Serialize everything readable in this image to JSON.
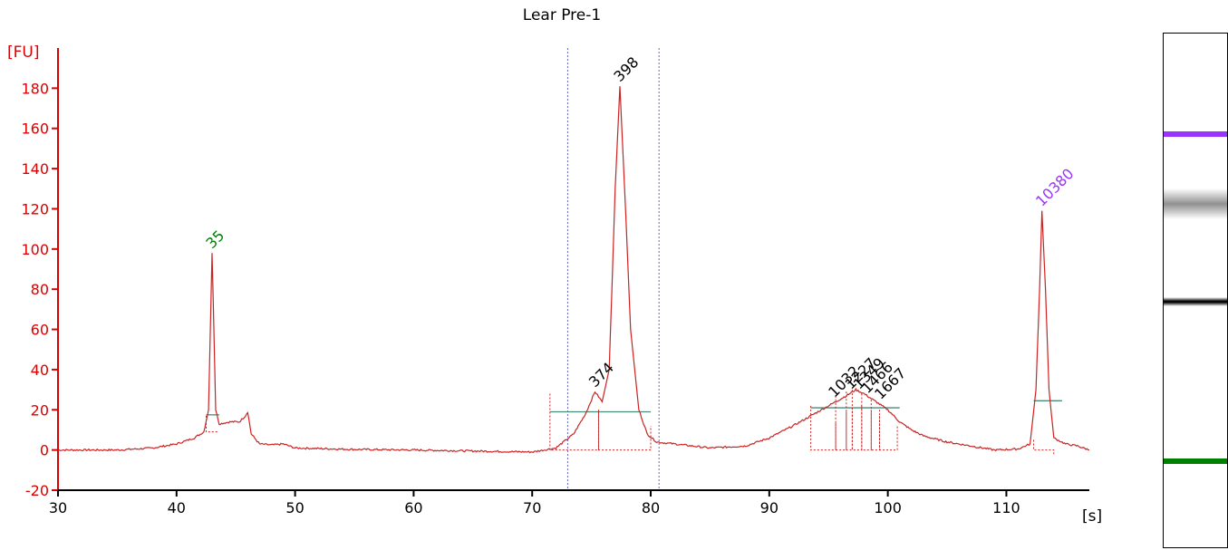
{
  "chart_data": {
    "type": "line",
    "title": "Lear Pre-1",
    "ylabel": "[FU]",
    "xlabel": "[s]",
    "xlim": [
      30,
      117
    ],
    "ylim": [
      -20,
      200
    ],
    "x_ticks": [
      "30",
      "40",
      "50",
      "60",
      "70",
      "80",
      "90",
      "100",
      "110"
    ],
    "y_ticks": [
      "-20",
      "0",
      "20",
      "40",
      "60",
      "80",
      "100",
      "120",
      "140",
      "160",
      "180"
    ],
    "grid": false,
    "colors": {
      "trace": "#cc2222",
      "axis_y": "#dd0000",
      "axis_x": "#000000",
      "baseline": "#4a8a7a",
      "marker_lower": "#008000",
      "marker_upper": "#9933ff",
      "region": "#6666cc"
    },
    "region_bounds": [
      73,
      80.7
    ],
    "peaks": [
      {
        "label": "35",
        "x": 43.0,
        "y": 98,
        "color": "#008000"
      },
      {
        "label": "374",
        "x": 75.3,
        "y": 29,
        "color": "#000000"
      },
      {
        "label": "398",
        "x": 77.4,
        "y": 181,
        "color": "#000000"
      },
      {
        "label": "1032",
        "x": 95.5,
        "y": 24,
        "color": "#000000"
      },
      {
        "label": "1227",
        "x": 96.9,
        "y": 28,
        "color": "#000000"
      },
      {
        "label": "1349",
        "x": 97.6,
        "y": 28,
        "color": "#000000"
      },
      {
        "label": "1466",
        "x": 98.3,
        "y": 26,
        "color": "#000000"
      },
      {
        "label": "1667",
        "x": 99.4,
        "y": 23,
        "color": "#000000"
      },
      {
        "label": "10380",
        "x": 113.0,
        "y": 119,
        "color": "#9933ff"
      }
    ],
    "trace_points": [
      [
        30,
        0
      ],
      [
        35,
        0
      ],
      [
        38,
        1
      ],
      [
        40,
        3
      ],
      [
        41.5,
        6
      ],
      [
        42.3,
        9
      ],
      [
        42.7,
        20
      ],
      [
        43.0,
        98
      ],
      [
        43.3,
        20
      ],
      [
        43.6,
        13
      ],
      [
        44.5,
        14
      ],
      [
        45.3,
        14
      ],
      [
        45.8,
        17
      ],
      [
        46.0,
        19
      ],
      [
        46.3,
        8
      ],
      [
        47,
        3
      ],
      [
        48,
        2.5
      ],
      [
        49,
        3
      ],
      [
        50,
        1
      ],
      [
        55,
        0.3
      ],
      [
        60,
        0
      ],
      [
        65,
        -0.5
      ],
      [
        70,
        -1
      ],
      [
        72,
        1
      ],
      [
        73.5,
        8
      ],
      [
        74.5,
        18
      ],
      [
        75.3,
        29
      ],
      [
        75.9,
        24
      ],
      [
        76.5,
        40
      ],
      [
        77.0,
        130
      ],
      [
        77.4,
        181
      ],
      [
        77.8,
        130
      ],
      [
        78.3,
        60
      ],
      [
        79.0,
        20
      ],
      [
        79.7,
        8
      ],
      [
        80.5,
        4
      ],
      [
        82,
        3
      ],
      [
        85,
        1
      ],
      [
        88,
        2
      ],
      [
        90,
        6
      ],
      [
        92,
        12
      ],
      [
        93.5,
        17
      ],
      [
        95,
        22
      ],
      [
        96.5,
        27
      ],
      [
        97.3,
        30
      ],
      [
        98,
        28
      ],
      [
        99,
        24
      ],
      [
        100,
        20
      ],
      [
        101,
        14
      ],
      [
        102,
        10
      ],
      [
        103,
        7
      ],
      [
        105,
        4
      ],
      [
        107,
        2
      ],
      [
        109,
        0
      ],
      [
        111,
        0.5
      ],
      [
        112,
        3
      ],
      [
        112.5,
        30
      ],
      [
        112.8,
        80
      ],
      [
        113.0,
        119
      ],
      [
        113.3,
        80
      ],
      [
        113.6,
        30
      ],
      [
        114,
        6
      ],
      [
        115,
        3
      ],
      [
        116,
        2
      ],
      [
        117,
        0
      ]
    ]
  },
  "gel": {
    "bands": [
      {
        "position": 0.195,
        "color": "#9933ff",
        "intensity": 1.0
      },
      {
        "position": 0.33,
        "color": "#909090",
        "intensity": 0.4
      },
      {
        "position": 0.52,
        "color": "#000000",
        "intensity": 0.95
      },
      {
        "position": 0.83,
        "color": "#008000",
        "intensity": 1.0
      }
    ]
  }
}
